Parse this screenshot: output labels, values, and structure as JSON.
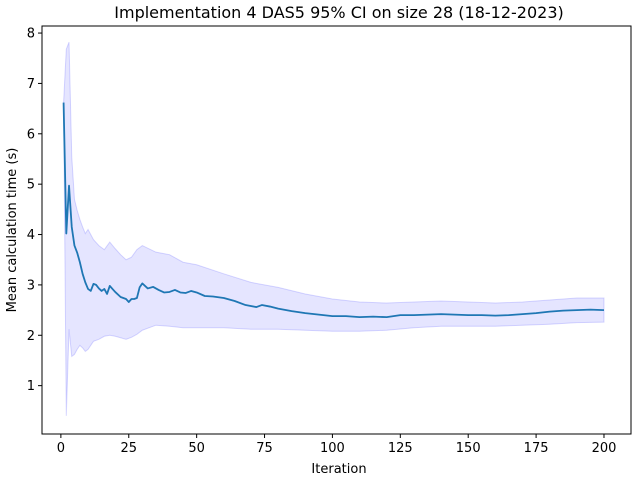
{
  "chart_data": {
    "type": "line",
    "title": "Implementation 4 DAS5 95% CI on size 28 (18-12-2023)",
    "xlabel": "Iteration",
    "ylabel": "Mean calculation time (s)",
    "xlim": [
      -6.95,
      209.95
    ],
    "ylim": [
      0.04,
      8.14
    ],
    "xticks": [
      0,
      25,
      50,
      75,
      100,
      125,
      150,
      175,
      200
    ],
    "yticks": [
      1,
      2,
      3,
      4,
      5,
      6,
      7,
      8
    ],
    "grid": false,
    "series": [
      {
        "role": "mean",
        "color": "#1f77b4",
        "x": [
          1,
          2,
          3,
          4,
          5,
          6,
          7,
          8,
          9,
          10,
          11,
          12,
          13,
          14,
          15,
          16,
          17,
          18,
          19,
          20,
          22,
          24,
          25,
          26,
          27,
          28,
          29,
          30,
          31,
          32,
          34,
          36,
          38,
          40,
          42,
          44,
          46,
          48,
          50,
          53,
          56,
          60,
          64,
          68,
          72,
          74,
          77,
          80,
          85,
          90,
          95,
          100,
          105,
          110,
          115,
          120,
          125,
          130,
          135,
          140,
          145,
          150,
          155,
          160,
          165,
          170,
          175,
          180,
          185,
          190,
          195,
          200
        ],
        "y": [
          6.62,
          4.02,
          4.97,
          4.15,
          3.78,
          3.64,
          3.45,
          3.22,
          3.05,
          2.92,
          2.88,
          3.02,
          3.0,
          2.93,
          2.88,
          2.92,
          2.82,
          2.98,
          2.92,
          2.86,
          2.76,
          2.72,
          2.66,
          2.72,
          2.72,
          2.74,
          2.95,
          3.03,
          2.98,
          2.93,
          2.96,
          2.9,
          2.85,
          2.86,
          2.9,
          2.85,
          2.84,
          2.88,
          2.85,
          2.78,
          2.77,
          2.74,
          2.68,
          2.6,
          2.56,
          2.6,
          2.57,
          2.53,
          2.48,
          2.44,
          2.41,
          2.38,
          2.38,
          2.36,
          2.37,
          2.36,
          2.4,
          2.4,
          2.41,
          2.42,
          2.41,
          2.4,
          2.4,
          2.39,
          2.4,
          2.42,
          2.44,
          2.47,
          2.49,
          2.5,
          2.51,
          2.5
        ]
      },
      {
        "role": "ci-upper",
        "color": "#0000ff",
        "x": [
          1,
          2,
          3,
          4,
          5,
          6,
          7,
          8,
          9,
          10,
          12,
          14,
          16,
          18,
          20,
          22,
          24,
          26,
          28,
          30,
          35,
          40,
          45,
          50,
          60,
          70,
          80,
          90,
          100,
          110,
          120,
          130,
          140,
          150,
          160,
          170,
          180,
          190,
          200
        ],
        "y": [
          6.62,
          7.68,
          7.82,
          5.55,
          4.7,
          4.48,
          4.3,
          4.15,
          4.02,
          4.1,
          3.9,
          3.78,
          3.7,
          3.85,
          3.72,
          3.6,
          3.5,
          3.55,
          3.7,
          3.78,
          3.65,
          3.6,
          3.45,
          3.4,
          3.22,
          3.05,
          2.95,
          2.82,
          2.72,
          2.66,
          2.64,
          2.66,
          2.68,
          2.66,
          2.64,
          2.66,
          2.7,
          2.74,
          2.74
        ]
      },
      {
        "role": "ci-lower",
        "color": "#0000ff",
        "x": [
          1,
          2,
          3,
          4,
          5,
          6,
          7,
          8,
          9,
          10,
          12,
          14,
          16,
          18,
          20,
          22,
          24,
          26,
          28,
          30,
          35,
          40,
          45,
          50,
          60,
          70,
          80,
          90,
          100,
          110,
          120,
          130,
          140,
          150,
          160,
          170,
          180,
          190,
          200
        ],
        "y": [
          6.62,
          0.4,
          2.12,
          1.58,
          1.62,
          1.72,
          1.8,
          1.75,
          1.68,
          1.72,
          1.88,
          1.92,
          1.98,
          2.0,
          1.98,
          1.95,
          1.92,
          1.96,
          2.02,
          2.1,
          2.2,
          2.18,
          2.15,
          2.15,
          2.15,
          2.12,
          2.12,
          2.1,
          2.08,
          2.08,
          2.1,
          2.15,
          2.18,
          2.18,
          2.18,
          2.2,
          2.22,
          2.25,
          2.26
        ]
      }
    ]
  }
}
